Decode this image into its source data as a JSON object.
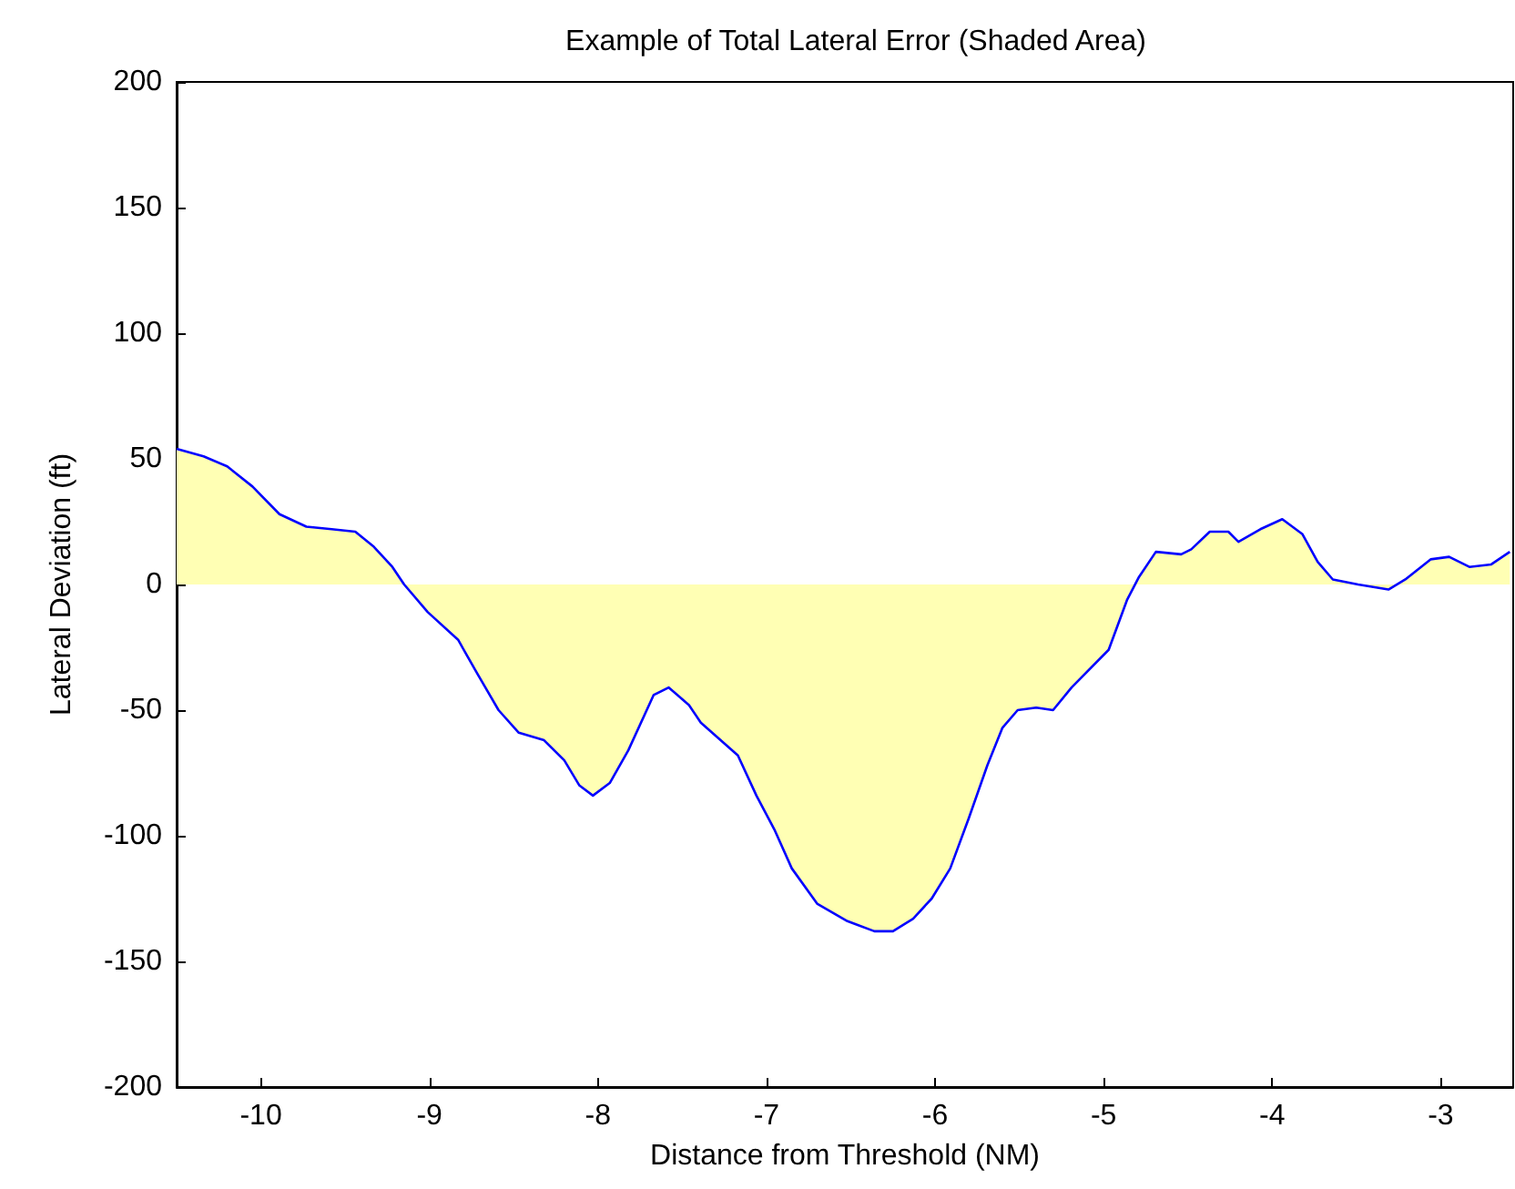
{
  "chart_data": {
    "type": "area",
    "title": "Example of Total Lateral Error (Shaded Area)",
    "xlabel": "Distance from Threshold (NM)",
    "ylabel": "Lateral Deviation (ft)",
    "x": [
      -10.5,
      -10.34,
      -10.2,
      -10.05,
      -9.89,
      -9.73,
      -9.58,
      -9.44,
      -9.33,
      -9.22,
      -9.15,
      -9.01,
      -8.83,
      -8.72,
      -8.59,
      -8.47,
      -8.32,
      -8.2,
      -8.11,
      -8.03,
      -7.93,
      -7.82,
      -7.67,
      -7.58,
      -7.46,
      -7.39,
      -7.17,
      -7.06,
      -6.95,
      -6.85,
      -6.7,
      -6.52,
      -6.36,
      -6.25,
      -6.13,
      -6.02,
      -5.91,
      -5.8,
      -5.69,
      -5.6,
      -5.51,
      -5.4,
      -5.3,
      -5.19,
      -4.97,
      -4.86,
      -4.79,
      -4.69,
      -4.54,
      -4.48,
      -4.37,
      -4.26,
      -4.2,
      -4.07,
      -3.94,
      -3.82,
      -3.73,
      -3.64,
      -3.49,
      -3.31,
      -3.21,
      -3.06,
      -2.95,
      -2.83,
      -2.7,
      -2.59
    ],
    "series": [
      {
        "color": "#ffffb4",
        "values": [
          54,
          51,
          47,
          39,
          28,
          23,
          22,
          21,
          15,
          7,
          0,
          -11,
          -22,
          -35,
          -50,
          -59,
          -62,
          -70,
          -80,
          -84,
          -79,
          -66,
          -44,
          -41,
          -48,
          -55,
          -68,
          -84,
          -98,
          -113,
          -127,
          -134,
          -138,
          -138,
          -133,
          -125,
          -113,
          -93,
          -72,
          -57,
          -50,
          -49,
          -50,
          -41,
          -26,
          -6,
          3,
          13,
          12,
          14,
          21,
          21,
          17,
          22,
          26,
          20,
          9,
          2,
          0,
          -2,
          2,
          10,
          11,
          7,
          8,
          13
        ]
      }
    ],
    "xlim": [
      -10.5,
      -2.57
    ],
    "xticks": [
      -10,
      -9,
      -8,
      -7,
      -6,
      -5,
      -4,
      -3
    ],
    "ylim": [
      -200,
      200
    ],
    "yticks": [
      -200,
      -150,
      -100,
      -50,
      0,
      50,
      100,
      150,
      200
    ],
    "grid": false,
    "marker": "none",
    "line_style": "solid"
  }
}
